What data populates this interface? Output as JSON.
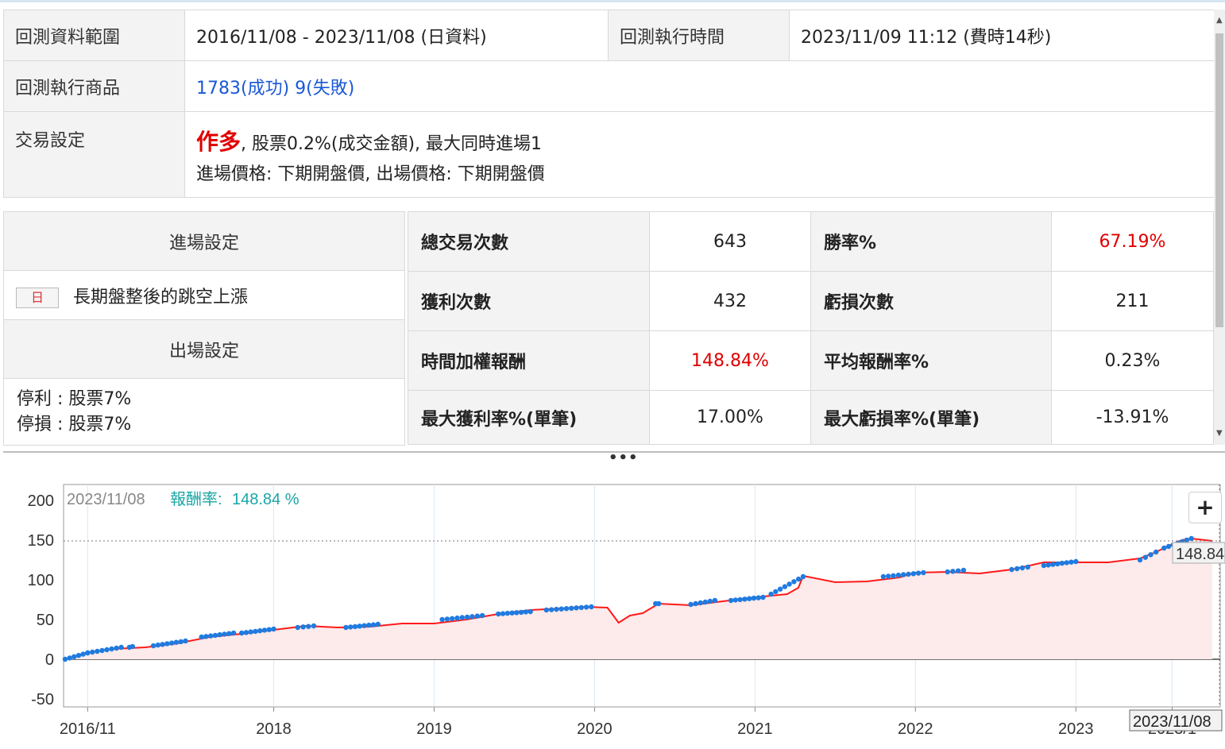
{
  "info": {
    "range_label": "回測資料範圍",
    "range_value": "2016/11/08 - 2023/11/08 (日資料)",
    "exec_time_label": "回測執行時間",
    "exec_time_value": "2023/11/09 11:12 (費時14秒)",
    "products_label": "回測執行商品",
    "products_value": "1783(成功) 9(失敗)",
    "trade_label": "交易設定",
    "trade_direction": "作多",
    "trade_line1_rest": ", 股票0.2%(成交金額), 最大同時進場1",
    "trade_line2": "進場價格: 下期開盤價, 出場價格: 下期開盤價"
  },
  "settings": {
    "entry_header": "進場設定",
    "entry_tag": "日",
    "entry_rule": "長期盤整後的跳空上漲",
    "exit_header": "出場設定",
    "exit_take_profit": "停利 : 股票7%",
    "exit_stop_loss": "停損 : 股票7%"
  },
  "stats": [
    {
      "label1": "總交易次數",
      "value1": "643",
      "label2": "勝率%",
      "value2": "67.19%",
      "red1": false,
      "red2": true
    },
    {
      "label1": "獲利次數",
      "value1": "432",
      "label2": "虧損次數",
      "value2": "211",
      "red1": false,
      "red2": false
    },
    {
      "label1": "時間加權報酬",
      "value1": "148.84%",
      "label2": "平均報酬率%",
      "value2": "0.23%",
      "red1": true,
      "red2": false
    },
    {
      "label1": "最大獲利率%(單筆)",
      "value1": "17.00%",
      "label2": "最大虧損率%(單筆)",
      "value2": "-13.91%",
      "red1": false,
      "red2": false
    }
  ],
  "chart_data": {
    "type": "area",
    "tooltip_date": "2023/11/08",
    "tooltip_label": "報酬率:",
    "tooltip_value": "148.84 %",
    "last_value_label": "148.84",
    "crosshair_date_label": "2023/11/08",
    "ylim": [
      -60,
      220
    ],
    "y_ticks": [
      200,
      150,
      100,
      50,
      0,
      -50
    ],
    "x_ticks": [
      {
        "label": "2016/11",
        "x": 2016.84
      },
      {
        "label": "2018",
        "x": 2018.0
      },
      {
        "label": "2019",
        "x": 2019.0
      },
      {
        "label": "2020",
        "x": 2020.0
      },
      {
        "label": "2021",
        "x": 2021.0
      },
      {
        "label": "2022",
        "x": 2022.0
      },
      {
        "label": "2023",
        "x": 2023.0
      },
      {
        "label": "2023/1",
        "x": 2023.6
      }
    ],
    "xlim": [
      2016.69,
      2023.9
    ],
    "series": [
      {
        "x": [
          2016.7,
          2016.84,
          2017.0,
          2017.2,
          2017.4,
          2017.6,
          2017.8,
          2018.0,
          2018.2,
          2018.4,
          2018.6,
          2018.8,
          2019.0,
          2019.2,
          2019.4,
          2019.6,
          2019.8,
          2019.95,
          2020.08,
          2020.15,
          2020.22,
          2020.3,
          2020.4,
          2020.6,
          2020.8,
          2021.0,
          2021.2,
          2021.27,
          2021.3,
          2021.5,
          2021.7,
          2021.9,
          2022.0,
          2022.2,
          2022.4,
          2022.6,
          2022.8,
          2023.0,
          2023.2,
          2023.4,
          2023.5,
          2023.6,
          2023.66,
          2023.72,
          2023.85
        ],
        "y": [
          0,
          8,
          13,
          15,
          20,
          28,
          32,
          37,
          42,
          40,
          41,
          45,
          45,
          50,
          57,
          62,
          64,
          66,
          65,
          46,
          55,
          58,
          70,
          68,
          73,
          78,
          82,
          90,
          105,
          97,
          98,
          103,
          109,
          110,
          108,
          113,
          122,
          122,
          122,
          127,
          135,
          145,
          150,
          152,
          149
        ]
      }
    ],
    "markers": [
      [
        2016.7,
        2016.84,
        0,
        8
      ],
      [
        2016.84,
        2017.05,
        8,
        15
      ],
      [
        2017.1,
        2017.12,
        15,
        16
      ],
      [
        2017.25,
        2017.45,
        17,
        23
      ],
      [
        2017.55,
        2017.75,
        28,
        33
      ],
      [
        2017.8,
        2018.0,
        33,
        38
      ],
      [
        2018.15,
        2018.25,
        40,
        42
      ],
      [
        2018.45,
        2018.65,
        40,
        44
      ],
      [
        2019.05,
        2019.3,
        50,
        55
      ],
      [
        2019.4,
        2019.6,
        57,
        60
      ],
      [
        2019.7,
        2019.98,
        62,
        66
      ],
      [
        2020.38,
        2020.4,
        70,
        70
      ],
      [
        2020.6,
        2020.75,
        69,
        74
      ],
      [
        2020.85,
        2021.05,
        74,
        78
      ],
      [
        2021.1,
        2021.3,
        82,
        104
      ],
      [
        2021.8,
        2022.05,
        104,
        109
      ],
      [
        2022.2,
        2022.3,
        110,
        112
      ],
      [
        2022.6,
        2022.7,
        113,
        116
      ],
      [
        2022.8,
        2023.0,
        118,
        123
      ],
      [
        2023.4,
        2023.5,
        125,
        135
      ],
      [
        2023.55,
        2023.72,
        140,
        152
      ]
    ]
  }
}
